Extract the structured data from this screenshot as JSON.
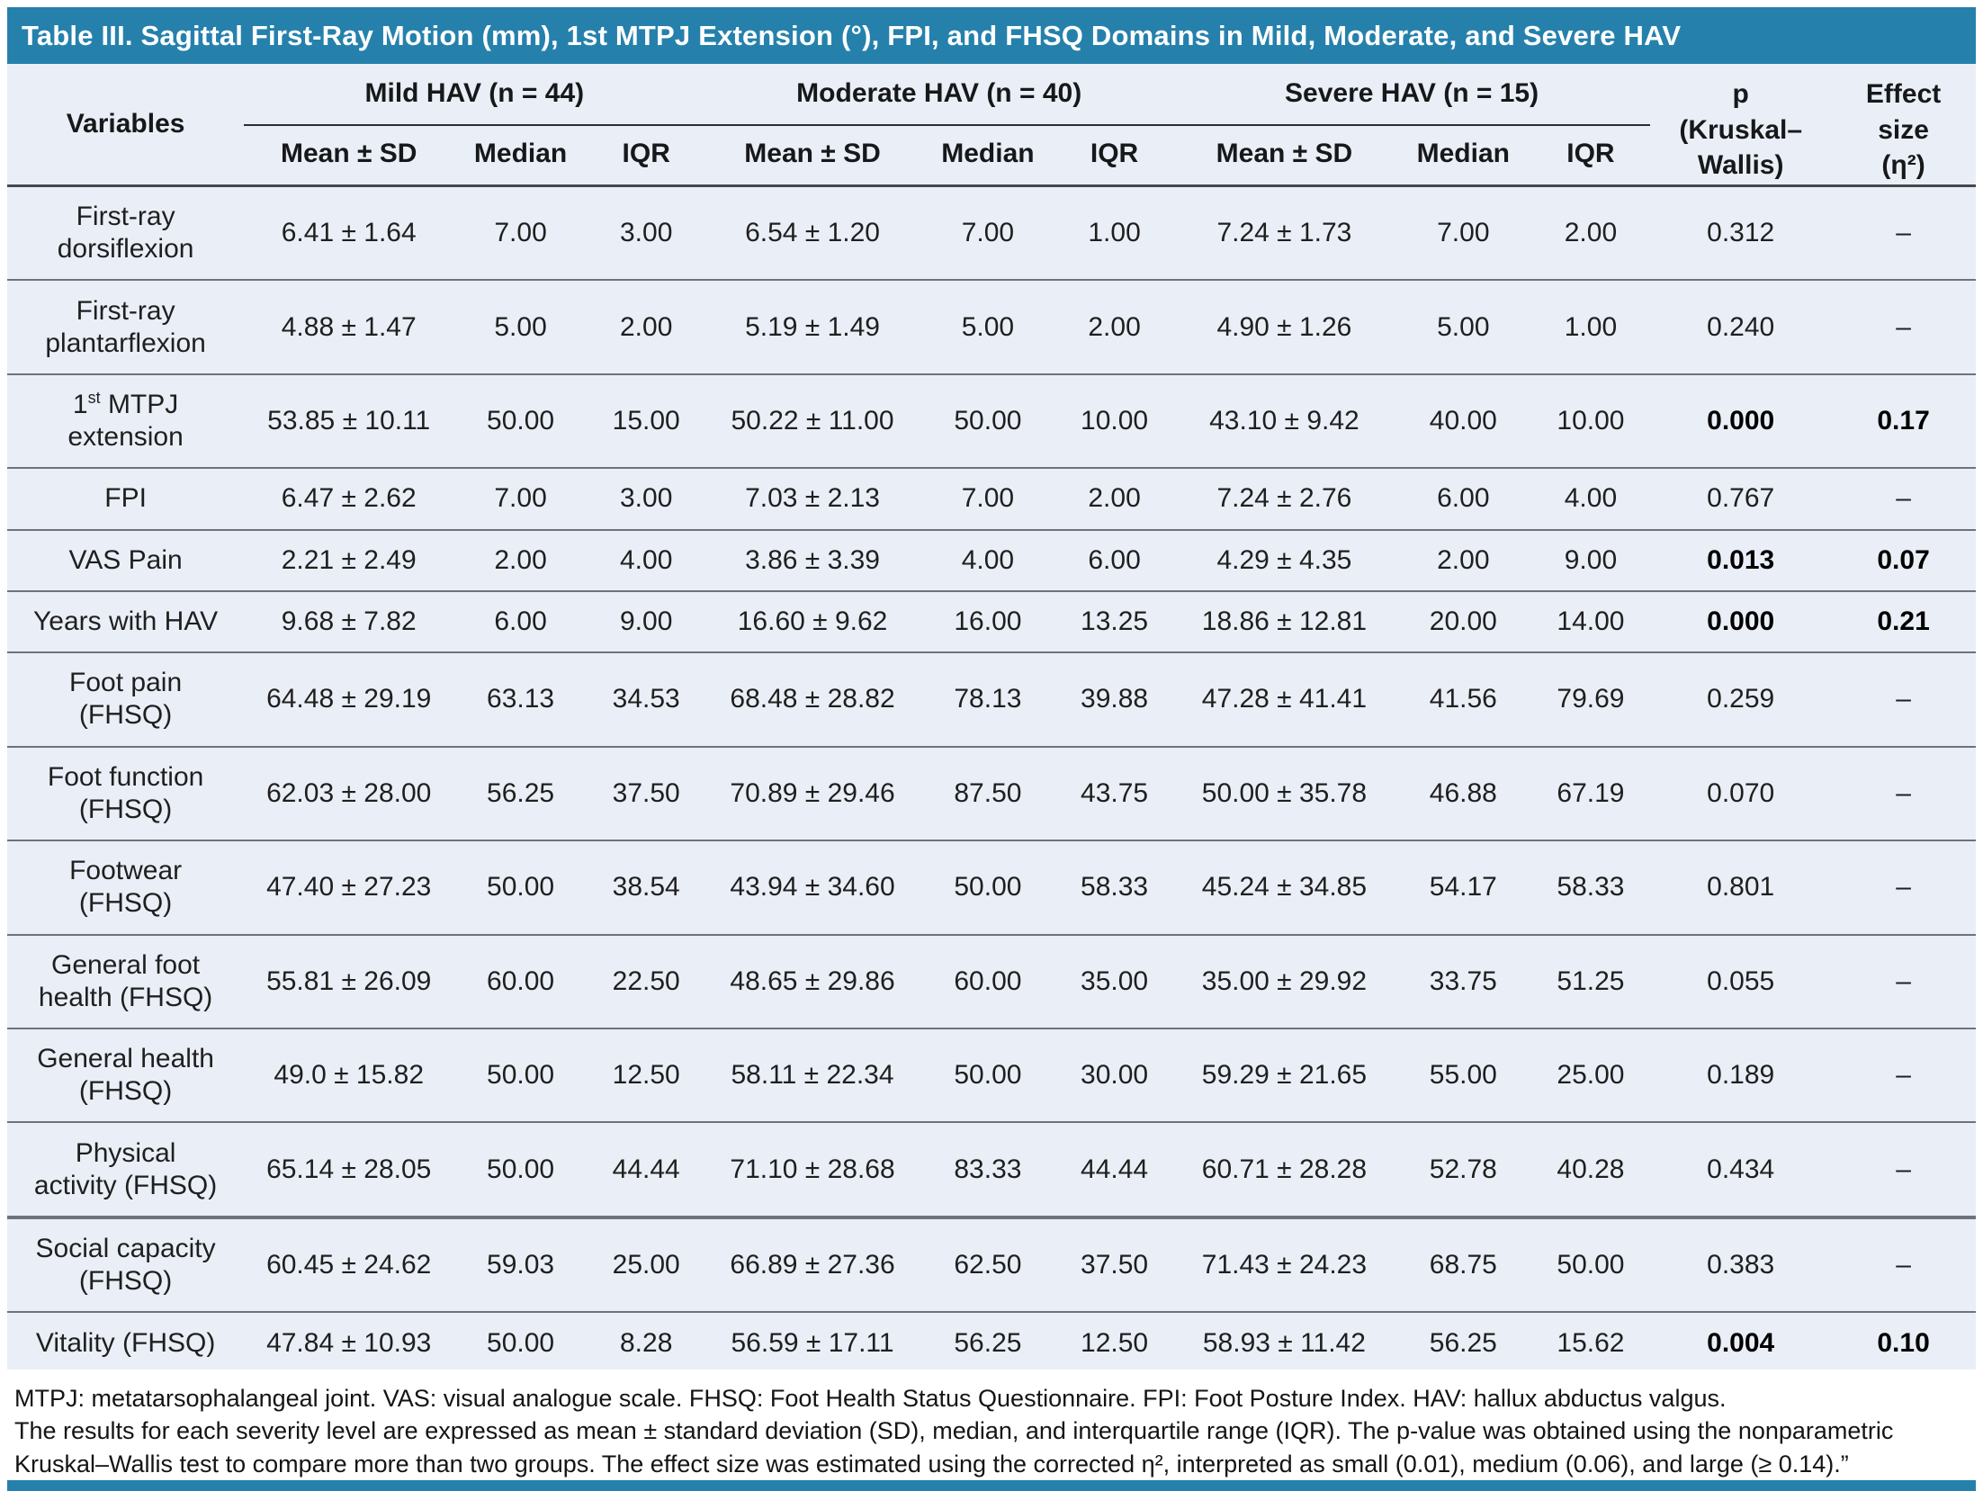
{
  "title": "Table III. Sagittal First-Ray Motion (mm), 1st MTPJ Extension (°), FPI, and FHSQ Domains in Mild, Moderate, and Severe HAV",
  "colors": {
    "header_blue": "#2581AC",
    "table_background": "#EAEFF7"
  },
  "header": {
    "variables_label": "Variables",
    "groups": [
      "Mild HAV (n = 44)",
      "Moderate HAV (n = 40)",
      "Severe HAV (n = 15)"
    ],
    "sub_columns": [
      "Mean ± SD",
      "Median",
      "IQR"
    ],
    "p_lines": [
      "p",
      "(Kruskal–",
      "Wallis)"
    ],
    "effect_lines": [
      "Effect",
      "size",
      "(η²)"
    ]
  },
  "rows": [
    {
      "variable": "First-ray\ndorsiflexion",
      "values": [
        "6.41 ± 1.64",
        "7.00",
        "3.00",
        "6.54 ± 1.20",
        "7.00",
        "1.00",
        "7.24 ± 1.73",
        "7.00",
        "2.00"
      ],
      "p": "0.312",
      "effect": "–",
      "bold": false
    },
    {
      "variable": "First-ray\nplantarflexion",
      "values": [
        "4.88 ± 1.47",
        "5.00",
        "2.00",
        "5.19 ± 1.49",
        "5.00",
        "2.00",
        "4.90 ± 1.26",
        "5.00",
        "1.00"
      ],
      "p": "0.240",
      "effect": "–",
      "bold": false
    },
    {
      "variable": "1st MTPJ\nextension",
      "variable_parts": [
        {
          "t": "1"
        },
        {
          "t": "st",
          "sup": true
        },
        {
          "t": " MTPJ\nextension"
        }
      ],
      "values": [
        "53.85 ± 10.11",
        "50.00",
        "15.00",
        "50.22 ± 11.00",
        "50.00",
        "10.00",
        "43.10 ± 9.42",
        "40.00",
        "10.00"
      ],
      "p": "0.000",
      "effect": "0.17",
      "bold": true
    },
    {
      "variable": "FPI",
      "values": [
        "6.47 ± 2.62",
        "7.00",
        "3.00",
        "7.03 ± 2.13",
        "7.00",
        "2.00",
        "7.24 ± 2.76",
        "6.00",
        "4.00"
      ],
      "p": "0.767",
      "effect": "–",
      "bold": false
    },
    {
      "variable": "VAS Pain",
      "values": [
        "2.21 ± 2.49",
        "2.00",
        "4.00",
        "3.86 ± 3.39",
        "4.00",
        "6.00",
        "4.29 ± 4.35",
        "2.00",
        "9.00"
      ],
      "p": "0.013",
      "effect": "0.07",
      "bold": true
    },
    {
      "variable": "Years with HAV",
      "values": [
        "9.68 ± 7.82",
        "6.00",
        "9.00",
        "16.60 ± 9.62",
        "16.00",
        "13.25",
        "18.86 ± 12.81",
        "20.00",
        "14.00"
      ],
      "p": "0.000",
      "effect": "0.21",
      "bold": true
    },
    {
      "variable": "Foot pain\n(FHSQ)",
      "values": [
        "64.48 ± 29.19",
        "63.13",
        "34.53",
        "68.48 ± 28.82",
        "78.13",
        "39.88",
        "47.28 ± 41.41",
        "41.56",
        "79.69"
      ],
      "p": "0.259",
      "effect": "–",
      "bold": false
    },
    {
      "variable": "Foot function\n(FHSQ)",
      "values": [
        "62.03 ± 28.00",
        "56.25",
        "37.50",
        "70.89 ± 29.46",
        "87.50",
        "43.75",
        "50.00 ± 35.78",
        "46.88",
        "67.19"
      ],
      "p": "0.070",
      "effect": "–",
      "bold": false
    },
    {
      "variable": "Footwear\n(FHSQ)",
      "values": [
        "47.40 ± 27.23",
        "50.00",
        "38.54",
        "43.94 ± 34.60",
        "50.00",
        "58.33",
        "45.24 ± 34.85",
        "54.17",
        "58.33"
      ],
      "p": "0.801",
      "effect": "–",
      "bold": false
    },
    {
      "variable": "General foot\nhealth (FHSQ)",
      "values": [
        "55.81 ± 26.09",
        "60.00",
        "22.50",
        "48.65 ± 29.86",
        "60.00",
        "35.00",
        "35.00 ± 29.92",
        "33.75",
        "51.25"
      ],
      "p": "0.055",
      "effect": "–",
      "bold": false
    },
    {
      "variable": "General health\n(FHSQ)",
      "values": [
        "49.0 ± 15.82",
        "50.00",
        "12.50",
        "58.11 ± 22.34",
        "50.00",
        "30.00",
        "59.29 ± 21.65",
        "55.00",
        "25.00"
      ],
      "p": "0.189",
      "effect": "–",
      "bold": false
    },
    {
      "variable": "Physical\nactivity (FHSQ)",
      "values": [
        "65.14 ± 28.05",
        "50.00",
        "44.44",
        "71.10 ± 28.68",
        "83.33",
        "44.44",
        "60.71 ± 28.28",
        "52.78",
        "40.28"
      ],
      "p": "0.434",
      "effect": "–",
      "bold": false
    },
    {
      "variable": "Social capacity\n(FHSQ)",
      "values": [
        "60.45 ± 24.62",
        "59.03",
        "25.00",
        "66.89 ± 27.36",
        "62.50",
        "37.50",
        "71.43 ± 24.23",
        "68.75",
        "50.00"
      ],
      "p": "0.383",
      "effect": "–",
      "bold": false,
      "thick_top": true
    },
    {
      "variable": "Vitality (FHSQ)",
      "values": [
        "47.84 ± 10.93",
        "50.00",
        "8.28",
        "56.59 ± 17.11",
        "56.25",
        "12.50",
        "58.93 ± 11.42",
        "56.25",
        "15.62"
      ],
      "p": "0.004",
      "effect": "0.10",
      "bold": true
    }
  ],
  "footnotes": {
    "abbreviations": "MTPJ: metatarsophalangeal joint. VAS: visual analogue scale. FHSQ: Foot Health Status Questionnaire. FPI: Foot Posture Index. HAV: hallux abductus valgus.",
    "methods": "The results for each severity level are expressed as mean ± standard deviation (SD), median, and interquartile range (IQR). The p-value was obtained using the nonparametric Kruskal–Wallis test to compare more than two groups. The effect size was estimated using the corrected η², interpreted as small (0.01), medium (0.06), and large (≥ 0.14).”"
  }
}
